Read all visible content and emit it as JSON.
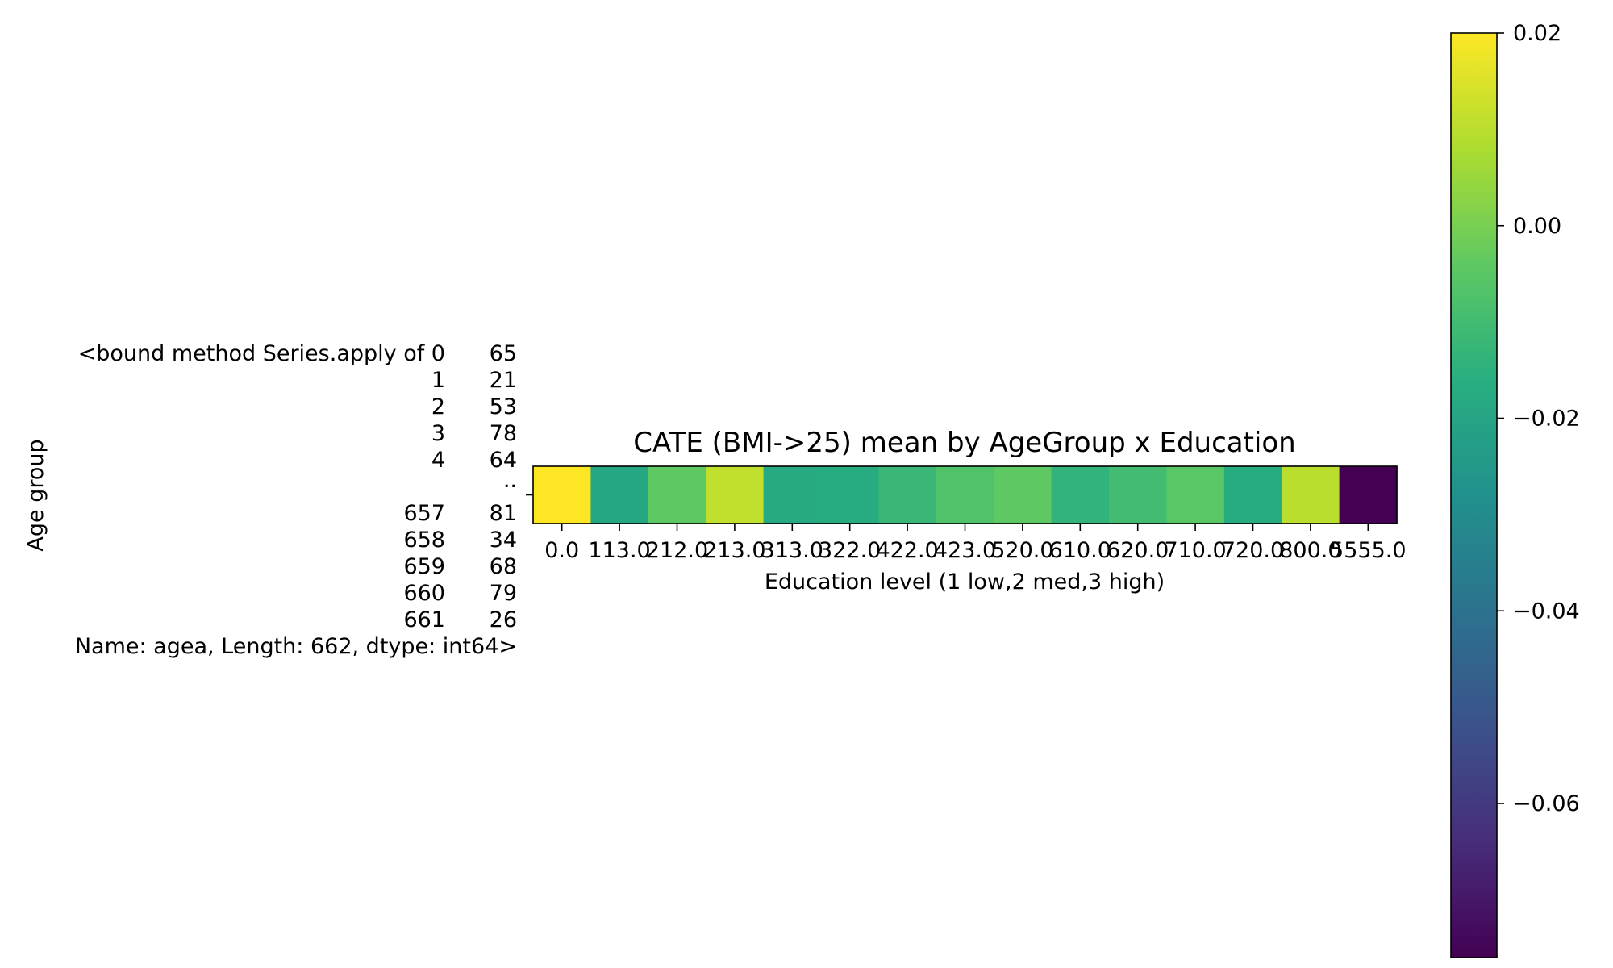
{
  "chart_data": {
    "type": "heatmap",
    "title": "CATE (BMI->25) mean by AgeGroup x Education",
    "xlabel": "Education level (1 low,2 med,3 high)",
    "ylabel": "Age group",
    "x_categories": [
      "0.0",
      "113.0",
      "212.0",
      "213.0",
      "313.0",
      "322.0",
      "422.0",
      "423.0",
      "520.0",
      "610.0",
      "620.0",
      "710.0",
      "720.0",
      "800.0",
      "5555.0"
    ],
    "y_categories": [
      "<bound method Series.apply of 0      65\n1      21\n2      53\n3      78\n4      64\n       ..\n657    81\n658    34\n659    68\n660    79\n661    26\nName: agea, Length: 662, dtype: int64>"
    ],
    "y_tick_lines": [
      [
        "<bound method Series.apply of 0",
        "65"
      ],
      [
        "1",
        "21"
      ],
      [
        "2",
        "53"
      ],
      [
        "3",
        "78"
      ],
      [
        "4",
        "64"
      ],
      [
        "",
        ".."
      ],
      [
        "657",
        "81"
      ],
      [
        "658",
        "34"
      ],
      [
        "659",
        "68"
      ],
      [
        "660",
        "79"
      ],
      [
        "661",
        "26"
      ],
      [
        "Name: agea, Length: 662, dtype: int64>",
        ""
      ]
    ],
    "values": [
      [
        0.02,
        -0.019,
        -0.004,
        0.011,
        -0.018,
        -0.017,
        -0.012,
        -0.007,
        -0.004,
        -0.014,
        -0.01,
        -0.005,
        -0.017,
        0.01,
        -0.076
      ]
    ],
    "colorbar": {
      "cmap": "viridis",
      "vmin": -0.076,
      "vmax": 0.02,
      "ticks": [
        0.02,
        0.0,
        -0.02,
        -0.04,
        -0.06
      ],
      "tick_labels": [
        "0.02",
        "0.00",
        "−0.02",
        "−0.04",
        "−0.06"
      ]
    },
    "grid": false
  }
}
